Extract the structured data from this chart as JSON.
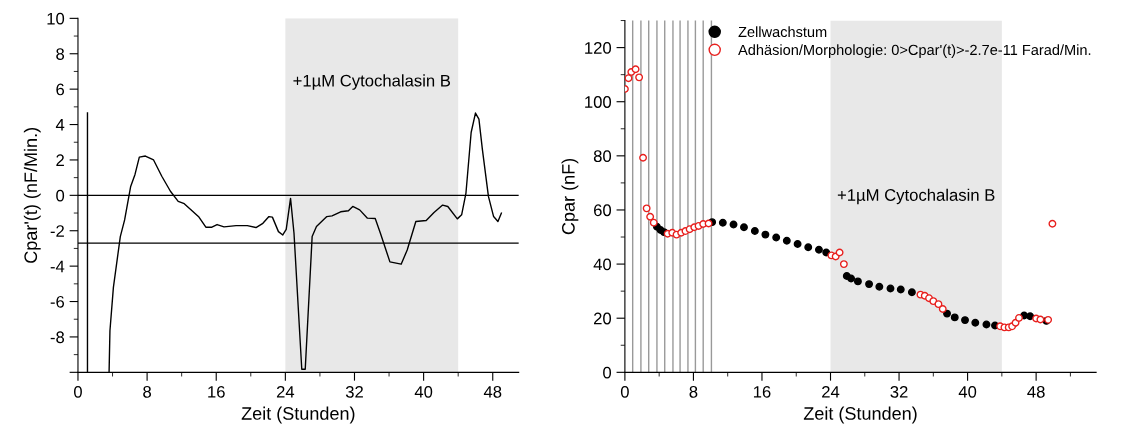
{
  "chart_data": [
    {
      "type": "line",
      "xlabel": "Zeit (Stunden)",
      "ylabel": "Cpar'(t) (nF/Min.)",
      "xlim": [
        0,
        51
      ],
      "xticks": [
        0,
        8,
        16,
        24,
        32,
        40,
        48
      ],
      "ylim": [
        -10,
        10
      ],
      "yticks": [
        {
          "value": -10,
          "label": null
        },
        -8,
        -6,
        -4,
        -2,
        0,
        2,
        4,
        6,
        8,
        10
      ],
      "grid": false,
      "legend": false,
      "marker": "none",
      "line_style": "solid",
      "series": [
        {
          "color": "#000000",
          "x": [
            1.1,
            1.1,
            null,
            3.6,
            3.7,
            4.1,
            4.9,
            5.4,
            6.1,
            6.6,
            7.1,
            7.8,
            8.75,
            9.7,
            10.7,
            11.6,
            12.3,
            14.0,
            14.8,
            15.5,
            16.1,
            16.9,
            18.3,
            19.6,
            20.6,
            21.4,
            22.1,
            22.5,
            23.2,
            23.7,
            24.1,
            24.6,
            25.0,
            25.9,
            26.3,
            27.1,
            27.6,
            28.8,
            29.4,
            30.4,
            31.3,
            31.8,
            32.6,
            33.5,
            34.4,
            35.0,
            36.1,
            37.4,
            38.1,
            39.1,
            40.3,
            41.2,
            42.2,
            42.8,
            43.9,
            44.4,
            44.9,
            45.5,
            46.0,
            46.4,
            46.8,
            47.5,
            48.1,
            48.6,
            49.0
          ],
          "values": [
            4.65,
            -10,
            null,
            -10,
            -7.65,
            -5.2,
            -2.33,
            -1.39,
            0.5,
            1.18,
            2.16,
            2.22,
            2.0,
            1.08,
            0.23,
            -0.34,
            -0.47,
            -1.23,
            -1.8,
            -1.8,
            -1.65,
            -1.78,
            -1.71,
            -1.71,
            -1.82,
            -1.58,
            -1.2,
            -1.23,
            -2.05,
            -2.24,
            -1.92,
            -0.17,
            -2.14,
            -9.83,
            -9.83,
            -2.33,
            -1.76,
            -1.2,
            -1.16,
            -0.93,
            -0.87,
            -0.63,
            -0.82,
            -1.29,
            -1.31,
            -2.14,
            -3.76,
            -3.89,
            -3.09,
            -1.48,
            -1.42,
            -0.97,
            -0.55,
            -0.63,
            -1.33,
            -1.1,
            0.13,
            3.55,
            4.65,
            4.31,
            2.6,
            -0.06,
            -1.2,
            -1.48,
            -1.0
          ]
        }
      ],
      "ref_lines": [
        {
          "axis": "y",
          "value": 0,
          "color": "#000000"
        },
        {
          "axis": "y",
          "value": -2.7,
          "color": "#000000"
        }
      ],
      "bands": [
        {
          "axis": "x",
          "from": 24,
          "to": 44,
          "color": "#e8e8e8",
          "label": "+1µM Cytochalasin B"
        }
      ]
    },
    {
      "type": "scatter",
      "xlabel": "Zeit (Stunden)",
      "ylabel": "Cpar (nF)",
      "xlim": [
        0,
        55
      ],
      "xticks": [
        0,
        8,
        16,
        24,
        32,
        40,
        48
      ],
      "ylim": [
        0,
        130
      ],
      "yticks": [
        0,
        20,
        40,
        60,
        80,
        100,
        120
      ],
      "grid": false,
      "legend": "top",
      "marker": "circle",
      "series": [
        {
          "name": "Zellwachstum",
          "color": "#000000",
          "x": [
            3.74,
            4.16,
            4.57,
            10.18,
            11.43,
            12.68,
            13.9,
            15.17,
            16.4,
            17.66,
            18.9,
            20.16,
            21.4,
            22.65,
            23.5,
            25.9,
            26.4,
            27.2,
            28.5,
            29.7,
            31.0,
            32.2,
            33.5,
            37.6,
            38.5,
            39.7,
            40.9,
            42.2,
            43.2,
            46.6,
            47.3,
            49.2
          ],
          "values": [
            53.8,
            52.6,
            51.8,
            55.5,
            55.3,
            54.6,
            53.6,
            52.2,
            50.9,
            49.8,
            48.6,
            47.4,
            46.2,
            45.3,
            44.3,
            35.6,
            34.7,
            33.6,
            32.6,
            31.6,
            31.0,
            30.6,
            29.6,
            21.7,
            20.3,
            19.3,
            18.3,
            17.7,
            17.3,
            21.0,
            20.7,
            19.0
          ]
        },
        {
          "name": "Adhäsion/Morphologie: 0>Cpar'(t)>-2.7e-11 Farad/Min.",
          "color": "#e8201e",
          "x": [
            0,
            0.42,
            0.75,
            1.25,
            1.66,
            2.12,
            2.54,
            2.95,
            3.37,
            4.99,
            5.53,
            6.03,
            6.57,
            7.07,
            7.56,
            8.1,
            8.6,
            9.14,
            9.77,
            24.1,
            24.6,
            25.06,
            25.56,
            34.5,
            35.0,
            35.5,
            36.0,
            36.6,
            37.1,
            43.8,
            44.3,
            44.8,
            45.2,
            45.6,
            46.0,
            48.0,
            48.5,
            49.4,
            49.9
          ],
          "values": [
            104.7,
            108.7,
            111,
            112,
            109,
            79.3,
            60.6,
            57.5,
            55.3,
            51.2,
            51.6,
            50.9,
            51.6,
            52.2,
            52.9,
            53.6,
            54.1,
            54.8,
            55.0,
            43.2,
            42.8,
            44.3,
            40.0,
            28.7,
            28.3,
            27.4,
            26.3,
            25.2,
            23.4,
            17.0,
            16.6,
            16.6,
            17.0,
            18.3,
            20.1,
            19.9,
            19.5,
            19.4,
            54.9
          ]
        }
      ],
      "ref_lines": [
        {
          "axis": "x",
          "value": 0.91,
          "color": "#999999"
        },
        {
          "axis": "x",
          "value": 1.87,
          "color": "#999999"
        },
        {
          "axis": "x",
          "value": 2.78,
          "color": "#999999"
        },
        {
          "axis": "x",
          "value": 3.74,
          "color": "#999999"
        },
        {
          "axis": "x",
          "value": 4.65,
          "color": "#999999"
        },
        {
          "axis": "x",
          "value": 5.61,
          "color": "#999999"
        },
        {
          "axis": "x",
          "value": 6.44,
          "color": "#999999"
        },
        {
          "axis": "x",
          "value": 7.36,
          "color": "#999999"
        },
        {
          "axis": "x",
          "value": 8.23,
          "color": "#999999"
        },
        {
          "axis": "x",
          "value": 9.14,
          "color": "#999999"
        },
        {
          "axis": "x",
          "value": 10.1,
          "color": "#999999"
        }
      ],
      "bands": [
        {
          "axis": "x",
          "from": 24,
          "to": 44,
          "color": "#e8e8e8",
          "label": "+1µM Cytochalasin B"
        }
      ]
    }
  ]
}
